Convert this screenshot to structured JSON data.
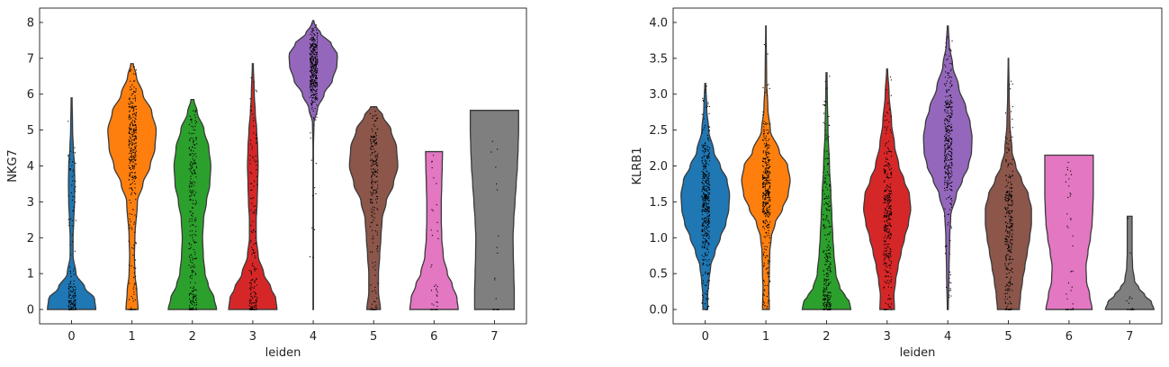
{
  "chart_data": [
    {
      "type": "violin",
      "xlabel": "leiden",
      "ylabel": "NKG7",
      "ylim": [
        -0.4,
        8.4
      ],
      "yticks": [
        0,
        1,
        2,
        3,
        4,
        5,
        6,
        7,
        8
      ],
      "ytick_labels": [
        "0",
        "1",
        "2",
        "3",
        "4",
        "5",
        "6",
        "7",
        "8"
      ],
      "categories": [
        "0",
        "1",
        "2",
        "3",
        "4",
        "5",
        "6",
        "7"
      ],
      "colors": [
        "#1f77b4",
        "#ff7f0e",
        "#2ca02c",
        "#d62728",
        "#9467bd",
        "#8c564b",
        "#e377c2",
        "#7f7f7f"
      ],
      "violins": [
        {
          "cat": "0",
          "max": 5.9,
          "n_points": 150,
          "profile": [
            [
              0,
              1.0
            ],
            [
              0.3,
              0.95
            ],
            [
              0.6,
              0.55
            ],
            [
              1.0,
              0.18
            ],
            [
              1.5,
              0.06
            ],
            [
              2.0,
              0.06
            ],
            [
              2.5,
              0.09
            ],
            [
              3.0,
              0.12
            ],
            [
              3.5,
              0.13
            ],
            [
              4.0,
              0.12
            ],
            [
              4.5,
              0.07
            ],
            [
              5.0,
              0.04
            ],
            [
              5.9,
              0.02
            ]
          ]
        },
        {
          "cat": "1",
          "max": 6.85,
          "n_points": 320,
          "profile": [
            [
              0,
              0.25
            ],
            [
              0.5,
              0.2
            ],
            [
              1.0,
              0.12
            ],
            [
              1.5,
              0.1
            ],
            [
              2.0,
              0.12
            ],
            [
              3.0,
              0.22
            ],
            [
              3.5,
              0.45
            ],
            [
              4.0,
              0.75
            ],
            [
              4.5,
              0.95
            ],
            [
              5.0,
              1.0
            ],
            [
              5.5,
              0.82
            ],
            [
              6.0,
              0.45
            ],
            [
              6.5,
              0.18
            ],
            [
              6.85,
              0.05
            ]
          ]
        },
        {
          "cat": "2",
          "max": 5.85,
          "n_points": 250,
          "profile": [
            [
              0,
              1.0
            ],
            [
              0.3,
              0.9
            ],
            [
              0.7,
              0.65
            ],
            [
              1.0,
              0.52
            ],
            [
              1.5,
              0.45
            ],
            [
              2.0,
              0.42
            ],
            [
              2.5,
              0.46
            ],
            [
              3.0,
              0.58
            ],
            [
              3.5,
              0.72
            ],
            [
              4.0,
              0.76
            ],
            [
              4.5,
              0.68
            ],
            [
              5.0,
              0.48
            ],
            [
              5.5,
              0.2
            ],
            [
              5.85,
              0.06
            ]
          ]
        },
        {
          "cat": "3",
          "max": 6.85,
          "n_points": 160,
          "profile": [
            [
              0,
              1.0
            ],
            [
              0.3,
              0.95
            ],
            [
              0.6,
              0.75
            ],
            [
              1.0,
              0.45
            ],
            [
              1.5,
              0.22
            ],
            [
              2.0,
              0.14
            ],
            [
              2.5,
              0.14
            ],
            [
              3.0,
              0.18
            ],
            [
              3.5,
              0.2
            ],
            [
              4.0,
              0.22
            ],
            [
              4.5,
              0.2
            ],
            [
              5.0,
              0.16
            ],
            [
              5.5,
              0.1
            ],
            [
              6.0,
              0.06
            ],
            [
              6.85,
              0.02
            ]
          ]
        },
        {
          "cat": "4",
          "max": 8.05,
          "min": 0,
          "n_points": 400,
          "profile": [
            [
              0,
              0.01
            ],
            [
              4.5,
              0.01
            ],
            [
              5.2,
              0.03
            ],
            [
              5.6,
              0.18
            ],
            [
              6.0,
              0.45
            ],
            [
              6.4,
              0.8
            ],
            [
              6.8,
              0.98
            ],
            [
              7.1,
              1.0
            ],
            [
              7.4,
              0.75
            ],
            [
              7.7,
              0.3
            ],
            [
              7.95,
              0.06
            ],
            [
              8.05,
              0.02
            ]
          ]
        },
        {
          "cat": "5",
          "max": 5.65,
          "n_points": 200,
          "profile": [
            [
              0,
              0.28
            ],
            [
              0.5,
              0.2
            ],
            [
              1.0,
              0.2
            ],
            [
              1.5,
              0.25
            ],
            [
              2.0,
              0.3
            ],
            [
              2.5,
              0.35
            ],
            [
              3.0,
              0.52
            ],
            [
              3.5,
              0.82
            ],
            [
              4.0,
              1.0
            ],
            [
              4.5,
              0.95
            ],
            [
              5.0,
              0.72
            ],
            [
              5.4,
              0.38
            ],
            [
              5.65,
              0.12
            ]
          ]
        },
        {
          "cat": "6",
          "max": 4.4,
          "n_points": 30,
          "profile": [
            [
              0,
              1.0
            ],
            [
              0.3,
              0.95
            ],
            [
              0.7,
              0.75
            ],
            [
              1.0,
              0.55
            ],
            [
              1.5,
              0.38
            ],
            [
              2.0,
              0.32
            ],
            [
              2.5,
              0.3
            ],
            [
              3.0,
              0.3
            ],
            [
              3.5,
              0.32
            ],
            [
              4.0,
              0.34
            ],
            [
              4.4,
              0.35
            ]
          ]
        },
        {
          "cat": "7",
          "max": 5.55,
          "n_points": 12,
          "profile": [
            [
              0,
              0.82
            ],
            [
              0.5,
              0.82
            ],
            [
              1.0,
              0.8
            ],
            [
              1.5,
              0.78
            ],
            [
              2.0,
              0.77
            ],
            [
              2.5,
              0.8
            ],
            [
              3.0,
              0.85
            ],
            [
              3.5,
              0.9
            ],
            [
              4.0,
              0.95
            ],
            [
              4.5,
              0.98
            ],
            [
              5.0,
              1.0
            ],
            [
              5.55,
              1.0
            ]
          ]
        }
      ]
    },
    {
      "type": "violin",
      "xlabel": "leiden",
      "ylabel": "KLRB1",
      "ylim": [
        -0.2,
        4.2
      ],
      "yticks": [
        0.0,
        0.5,
        1.0,
        1.5,
        2.0,
        2.5,
        3.0,
        3.5,
        4.0
      ],
      "ytick_labels": [
        "0.0",
        "0.5",
        "1.0",
        "1.5",
        "2.0",
        "2.5",
        "3.0",
        "3.5",
        "4.0"
      ],
      "categories": [
        "0",
        "1",
        "2",
        "3",
        "4",
        "5",
        "6",
        "7"
      ],
      "colors": [
        "#1f77b4",
        "#ff7f0e",
        "#2ca02c",
        "#d62728",
        "#9467bd",
        "#8c564b",
        "#e377c2",
        "#7f7f7f"
      ],
      "violins": [
        {
          "cat": "0",
          "max": 3.15,
          "n_points": 450,
          "profile": [
            [
              0,
              0.1
            ],
            [
              0.2,
              0.1
            ],
            [
              0.4,
              0.15
            ],
            [
              0.6,
              0.22
            ],
            [
              0.8,
              0.4
            ],
            [
              1.0,
              0.62
            ],
            [
              1.2,
              0.85
            ],
            [
              1.4,
              0.97
            ],
            [
              1.6,
              1.0
            ],
            [
              1.8,
              0.9
            ],
            [
              2.0,
              0.62
            ],
            [
              2.2,
              0.35
            ],
            [
              2.5,
              0.14
            ],
            [
              2.8,
              0.06
            ],
            [
              3.15,
              0.02
            ]
          ]
        },
        {
          "cat": "1",
          "max": 3.95,
          "n_points": 400,
          "profile": [
            [
              0,
              0.14
            ],
            [
              0.3,
              0.12
            ],
            [
              0.5,
              0.14
            ],
            [
              0.8,
              0.16
            ],
            [
              1.0,
              0.22
            ],
            [
              1.2,
              0.38
            ],
            [
              1.4,
              0.68
            ],
            [
              1.6,
              0.92
            ],
            [
              1.8,
              1.0
            ],
            [
              2.0,
              0.9
            ],
            [
              2.2,
              0.55
            ],
            [
              2.5,
              0.18
            ],
            [
              2.8,
              0.08
            ],
            [
              3.2,
              0.03
            ],
            [
              3.95,
              0.01
            ]
          ]
        },
        {
          "cat": "2",
          "max": 3.3,
          "n_points": 260,
          "profile": [
            [
              0,
              1.0
            ],
            [
              0.1,
              0.95
            ],
            [
              0.2,
              0.75
            ],
            [
              0.3,
              0.55
            ],
            [
              0.5,
              0.38
            ],
            [
              0.8,
              0.3
            ],
            [
              1.0,
              0.26
            ],
            [
              1.3,
              0.22
            ],
            [
              1.6,
              0.18
            ],
            [
              2.0,
              0.12
            ],
            [
              2.5,
              0.06
            ],
            [
              3.0,
              0.03
            ],
            [
              3.3,
              0.02
            ]
          ]
        },
        {
          "cat": "3",
          "max": 3.35,
          "n_points": 320,
          "profile": [
            [
              0,
              0.3
            ],
            [
              0.2,
              0.28
            ],
            [
              0.4,
              0.35
            ],
            [
              0.6,
              0.45
            ],
            [
              0.8,
              0.58
            ],
            [
              1.0,
              0.72
            ],
            [
              1.2,
              0.88
            ],
            [
              1.4,
              0.97
            ],
            [
              1.6,
              0.92
            ],
            [
              1.8,
              0.7
            ],
            [
              2.0,
              0.48
            ],
            [
              2.3,
              0.3
            ],
            [
              2.6,
              0.18
            ],
            [
              3.0,
              0.08
            ],
            [
              3.35,
              0.02
            ]
          ]
        },
        {
          "cat": "4",
          "max": 3.95,
          "n_points": 360,
          "profile": [
            [
              0,
              0.02
            ],
            [
              0.5,
              0.05
            ],
            [
              1.0,
              0.08
            ],
            [
              1.3,
              0.12
            ],
            [
              1.6,
              0.35
            ],
            [
              1.8,
              0.6
            ],
            [
              2.0,
              0.85
            ],
            [
              2.2,
              0.98
            ],
            [
              2.4,
              1.0
            ],
            [
              2.6,
              0.92
            ],
            [
              2.8,
              0.75
            ],
            [
              3.1,
              0.45
            ],
            [
              3.4,
              0.2
            ],
            [
              3.7,
              0.06
            ],
            [
              3.95,
              0.02
            ]
          ]
        },
        {
          "cat": "5",
          "max": 3.5,
          "n_points": 300,
          "profile": [
            [
              0,
              0.45
            ],
            [
              0.2,
              0.5
            ],
            [
              0.4,
              0.58
            ],
            [
              0.6,
              0.68
            ],
            [
              0.8,
              0.78
            ],
            [
              1.0,
              0.88
            ],
            [
              1.2,
              0.95
            ],
            [
              1.4,
              0.95
            ],
            [
              1.6,
              0.82
            ],
            [
              1.8,
              0.55
            ],
            [
              2.0,
              0.3
            ],
            [
              2.2,
              0.15
            ],
            [
              2.6,
              0.06
            ],
            [
              3.0,
              0.03
            ],
            [
              3.5,
              0.01
            ]
          ]
        },
        {
          "cat": "6",
          "max": 2.15,
          "n_points": 30,
          "profile": [
            [
              0,
              0.95
            ],
            [
              0.2,
              0.85
            ],
            [
              0.4,
              0.72
            ],
            [
              0.6,
              0.7
            ],
            [
              0.8,
              0.78
            ],
            [
              1.0,
              0.88
            ],
            [
              1.2,
              0.95
            ],
            [
              1.4,
              0.98
            ],
            [
              1.6,
              1.0
            ],
            [
              1.8,
              1.0
            ],
            [
              2.0,
              1.0
            ],
            [
              2.15,
              1.0
            ]
          ]
        },
        {
          "cat": "7",
          "max": 1.3,
          "n_points": 8,
          "profile": [
            [
              0,
              1.0
            ],
            [
              0.1,
              0.9
            ],
            [
              0.2,
              0.62
            ],
            [
              0.3,
              0.38
            ],
            [
              0.4,
              0.2
            ],
            [
              0.6,
              0.12
            ],
            [
              0.8,
              0.1
            ],
            [
              1.0,
              0.1
            ],
            [
              1.2,
              0.1
            ],
            [
              1.3,
              0.1
            ]
          ]
        }
      ]
    }
  ]
}
